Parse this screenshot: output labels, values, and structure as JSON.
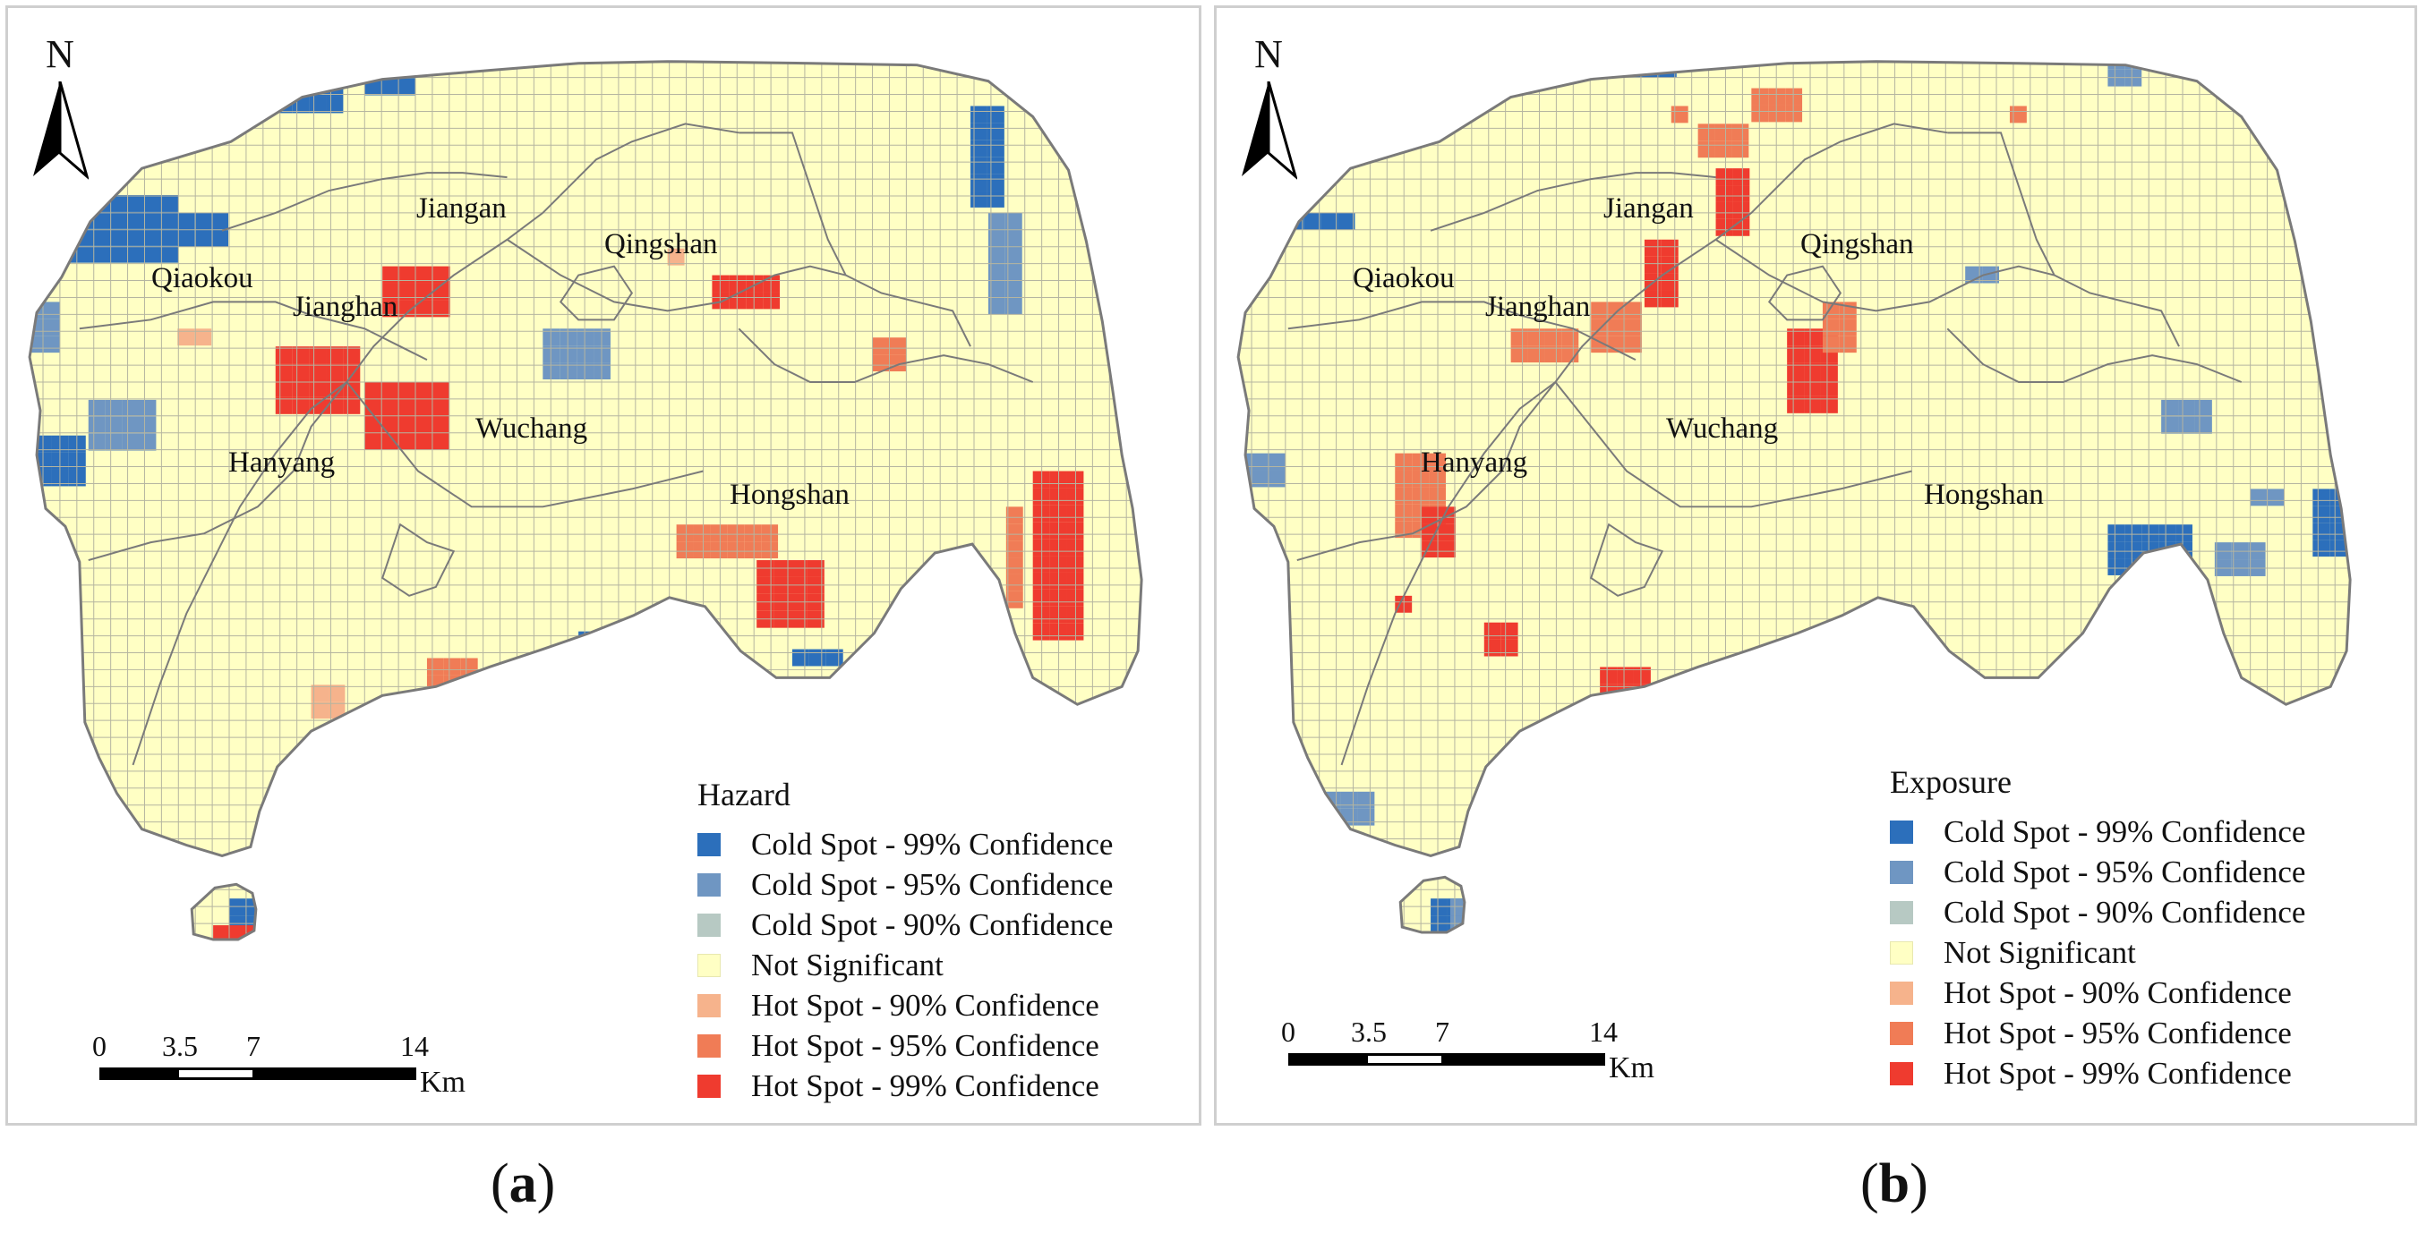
{
  "palette": {
    "cold99": "#2c6fbb",
    "cold95": "#6f96c2",
    "cold90": "#b7c9c3",
    "ns": "#ffffc4",
    "hot90": "#f6b38c",
    "hot95": "#f07c56",
    "hot99": "#ef3b2f",
    "grid": "#b5b5a0",
    "boundary": "#7a7a7a"
  },
  "north_label": "N",
  "panels": [
    {
      "id": "a",
      "caption_open": "(",
      "caption_letter": "a",
      "caption_close": ")",
      "legend": {
        "title": "Hazard",
        "entries": [
          {
            "label": "Cold Spot - 99% Confidence",
            "class": "cold99"
          },
          {
            "label": "Cold Spot - 95% Confidence",
            "class": "cold95"
          },
          {
            "label": "Cold Spot - 90% Confidence",
            "class": "cold90"
          },
          {
            "label": "Not Significant",
            "class": "ns"
          },
          {
            "label": "Hot Spot - 90% Confidence",
            "class": "hot90"
          },
          {
            "label": "Hot Spot - 95% Confidence",
            "class": "hot95"
          },
          {
            "label": "Hot Spot - 99% Confidence",
            "class": "hot99"
          }
        ]
      },
      "scale": {
        "ticks": [
          "0",
          "3.5",
          "7",
          "14"
        ],
        "unit": "Km"
      },
      "districts": [
        "Jiangan",
        "Qingshan",
        "Qiaokou",
        "Jianghan",
        "Wuchang",
        "Hanyang",
        "Hongshan"
      ]
    },
    {
      "id": "b",
      "caption_open": "(",
      "caption_letter": "b",
      "caption_close": ")",
      "legend": {
        "title": "Exposure",
        "entries": [
          {
            "label": "Cold Spot - 99% Confidence",
            "class": "cold99"
          },
          {
            "label": "Cold Spot - 95% Confidence",
            "class": "cold95"
          },
          {
            "label": "Cold Spot - 90% Confidence",
            "class": "cold90"
          },
          {
            "label": "Not Significant",
            "class": "ns"
          },
          {
            "label": "Hot Spot - 90% Confidence",
            "class": "hot90"
          },
          {
            "label": "Hot Spot - 95% Confidence",
            "class": "hot95"
          },
          {
            "label": "Hot Spot - 99% Confidence",
            "class": "hot99"
          }
        ]
      },
      "scale": {
        "ticks": [
          "0",
          "3.5",
          "7",
          "14"
        ],
        "unit": "Km"
      },
      "districts": [
        "Jiangan",
        "Qingshan",
        "Qiaokou",
        "Jianghan",
        "Wuchang",
        "Hanyang",
        "Hongshan"
      ]
    }
  ]
}
